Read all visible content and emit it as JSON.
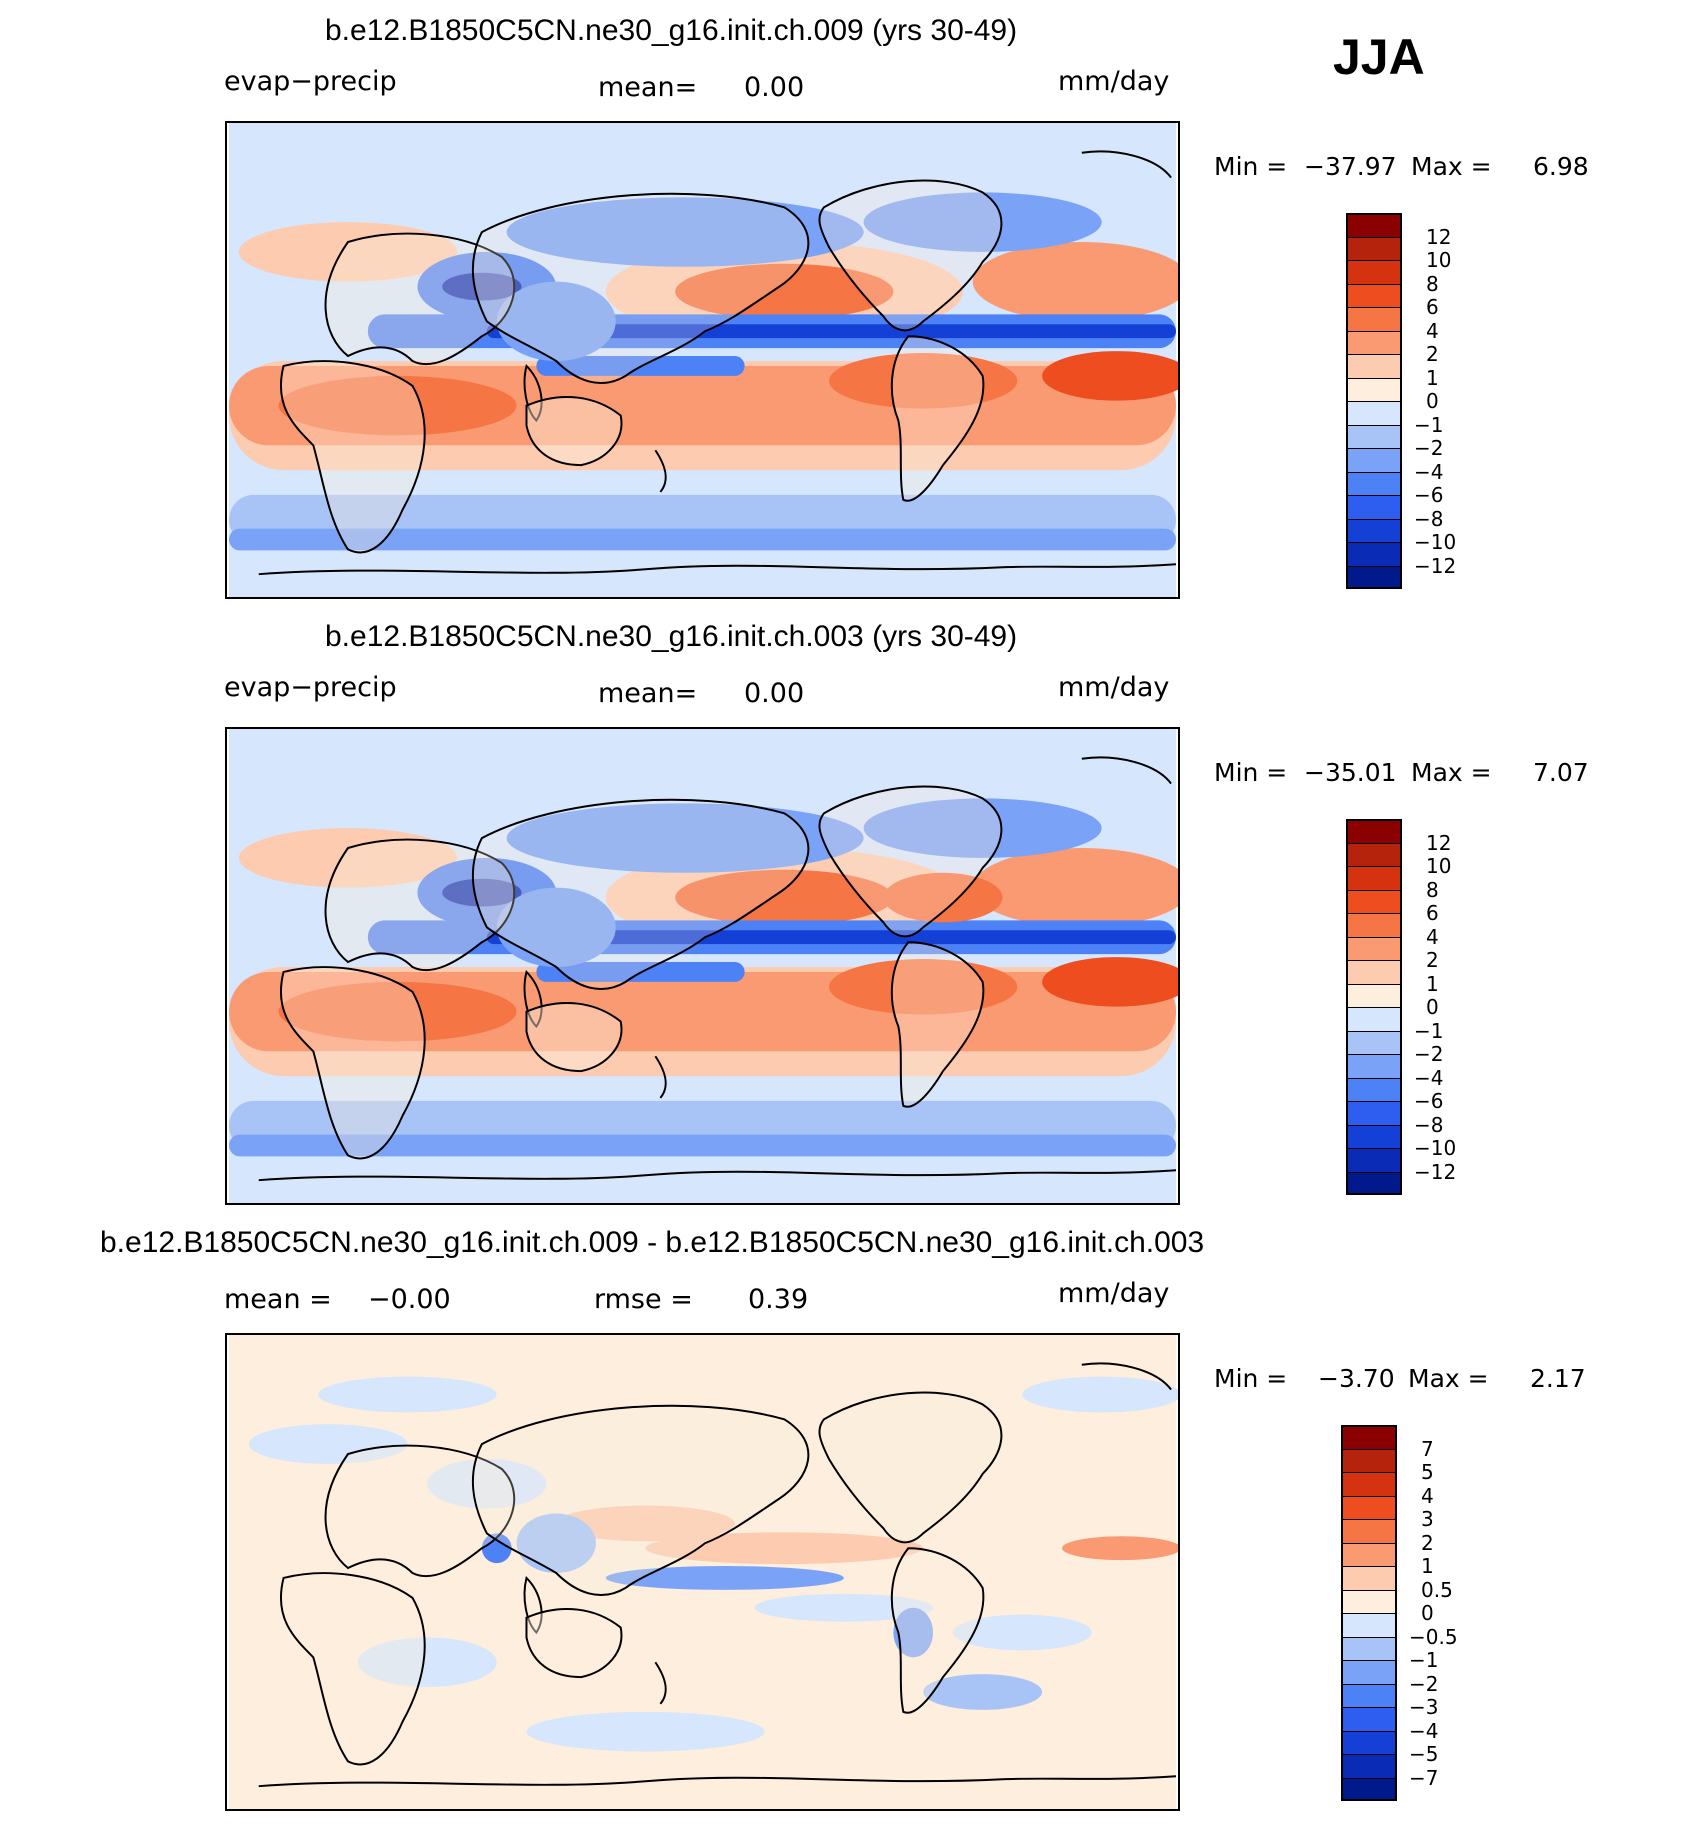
{
  "season": "JJA",
  "colors": {
    "abs_scale": [
      "#001a8c",
      "#0a2bb5",
      "#1540d6",
      "#2d5ef0",
      "#4d82f7",
      "#7aa3f7",
      "#a8c4f7",
      "#d6e6fc",
      "#fdeedd",
      "#fccbb0",
      "#fa9a72",
      "#f67545",
      "#ee4e1f",
      "#d5320f",
      "#b5230c",
      "#8b0000"
    ],
    "diff_scale": [
      "#001a8c",
      "#0a2bb5",
      "#1540d6",
      "#2d5ef0",
      "#4d82f7",
      "#7aa3f7",
      "#a8c4f7",
      "#d6e6fc",
      "#fdeedd",
      "#fccbb0",
      "#fa9a72",
      "#f67545",
      "#ee4e1f",
      "#d5320f",
      "#b5230c",
      "#8b0000"
    ]
  },
  "panels": [
    {
      "title": "b.e12.B1850C5CN.ne30_g16.init.ch.009 (yrs 30-49)",
      "left_label": "evap−precip",
      "mean_label": "mean=",
      "mean_value": "0.00",
      "units": "mm/day",
      "min_label": "Min  =",
      "min_value": "−37.97",
      "max_label": "Max  =",
      "max_value": "6.98",
      "scale": "abs"
    },
    {
      "title": "b.e12.B1850C5CN.ne30_g16.init.ch.003 (yrs 30-49)",
      "left_label": "evap−precip",
      "mean_label": "mean=",
      "mean_value": "0.00",
      "units": "mm/day",
      "min_label": "Min  =",
      "min_value": "−35.01",
      "max_label": "Max  =",
      "max_value": "7.07",
      "scale": "abs"
    },
    {
      "title": "b.e12.B1850C5CN.ne30_g16.init.ch.009 - b.e12.B1850C5CN.ne30_g16.init.ch.003",
      "left_label": "mean  =",
      "left_value": "−0.00",
      "mean_label": "rmse  =",
      "mean_value": "0.39",
      "units": "mm/day",
      "min_label": "Min  =",
      "min_value": "−3.70",
      "max_label": "Max  =",
      "max_value": "2.17",
      "scale": "diff"
    }
  ],
  "chart_data": [
    {
      "type": "heatmap",
      "title": "b.e12.B1850C5CN.ne30_g16.init.ch.009 (yrs 30-49)",
      "variable": "evap−precip",
      "units": "mm/day",
      "mean": 0.0,
      "min": -37.97,
      "max": 6.98,
      "colorbar_levels": [
        "12",
        "10",
        "8",
        "6",
        "4",
        "2",
        "1",
        "0",
        "−1",
        "−2",
        "−4",
        "−6",
        "−8",
        "−10",
        "−12"
      ]
    },
    {
      "type": "heatmap",
      "title": "b.e12.B1850C5CN.ne30_g16.init.ch.003 (yrs 30-49)",
      "variable": "evap−precip",
      "units": "mm/day",
      "mean": 0.0,
      "min": -35.01,
      "max": 7.07,
      "colorbar_levels": [
        "12",
        "10",
        "8",
        "6",
        "4",
        "2",
        "1",
        "0",
        "−1",
        "−2",
        "−4",
        "−6",
        "−8",
        "−10",
        "−12"
      ]
    },
    {
      "type": "heatmap",
      "title": "b.e12.B1850C5CN.ne30_g16.init.ch.009 - b.e12.B1850C5CN.ne30_g16.init.ch.003",
      "units": "mm/day",
      "mean": -0.0,
      "rmse": 0.39,
      "min": -3.7,
      "max": 2.17,
      "colorbar_levels": [
        "7",
        "5",
        "4",
        "3",
        "2",
        "1",
        "0.5",
        "0",
        "−0.5",
        "−1",
        "−2",
        "−3",
        "−4",
        "−5",
        "−7"
      ]
    }
  ]
}
